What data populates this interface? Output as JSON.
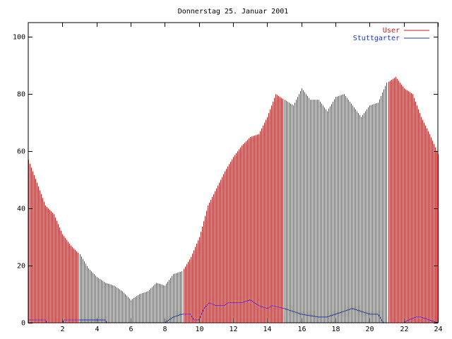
{
  "chart_data": {
    "type": "bar",
    "title": "Donnerstag 25. Januar 2001",
    "xlabel": "",
    "ylabel": "",
    "xlim": [
      0,
      24
    ],
    "ylim": [
      0,
      105
    ],
    "x_ticks": [
      2,
      4,
      6,
      8,
      10,
      12,
      14,
      16,
      18,
      20,
      22,
      24
    ],
    "x_tick_labels": [
      "2",
      "4",
      "6",
      "8",
      "10",
      "12",
      "14",
      "16",
      "18",
      "20",
      "22",
      "24"
    ],
    "y_ticks": [
      0,
      20,
      40,
      60,
      80,
      100
    ],
    "y_tick_labels": [
      "0",
      "20",
      "40",
      "60",
      "80",
      "100"
    ],
    "grid": false,
    "legend_position": "top-right",
    "series": [
      {
        "name": "User",
        "style": "impulses",
        "color": "#d11a1a",
        "points": [
          [
            0.0,
            57
          ],
          [
            0.5,
            49
          ],
          [
            1.0,
            41
          ],
          [
            1.5,
            38
          ],
          [
            2.0,
            31
          ],
          [
            2.5,
            27
          ],
          [
            3.0,
            24
          ],
          [
            3.5,
            19
          ],
          [
            4.0,
            16
          ],
          [
            4.5,
            14
          ],
          [
            5.0,
            13
          ],
          [
            5.5,
            11
          ],
          [
            6.0,
            8
          ],
          [
            6.5,
            10
          ],
          [
            7.0,
            11
          ],
          [
            7.5,
            14
          ],
          [
            8.0,
            13
          ],
          [
            8.5,
            17
          ],
          [
            9.0,
            18
          ],
          [
            9.5,
            23
          ],
          [
            10.0,
            30
          ],
          [
            10.5,
            41
          ],
          [
            11.0,
            47
          ],
          [
            11.5,
            53
          ],
          [
            12.0,
            58
          ],
          [
            12.5,
            62
          ],
          [
            13.0,
            65
          ],
          [
            13.5,
            66
          ],
          [
            14.0,
            72
          ],
          [
            14.5,
            80
          ],
          [
            15.0,
            78
          ],
          [
            15.5,
            76
          ],
          [
            16.0,
            82
          ],
          [
            16.5,
            78
          ],
          [
            17.0,
            78
          ],
          [
            17.5,
            74
          ],
          [
            18.0,
            79
          ],
          [
            18.5,
            80
          ],
          [
            19.0,
            76
          ],
          [
            19.5,
            72
          ],
          [
            20.0,
            76
          ],
          [
            20.5,
            77
          ],
          [
            21.0,
            84
          ],
          [
            21.5,
            86
          ],
          [
            22.0,
            82
          ],
          [
            22.5,
            80
          ],
          [
            23.0,
            72
          ],
          [
            23.5,
            66
          ],
          [
            24.0,
            59
          ]
        ]
      },
      {
        "name": "Stuttgarter",
        "style": "line",
        "color": "#1e36c8",
        "points": [
          [
            0.0,
            1
          ],
          [
            1.0,
            1
          ],
          [
            1.1,
            0
          ],
          [
            2.0,
            0
          ],
          [
            2.1,
            1
          ],
          [
            4.5,
            1
          ],
          [
            4.6,
            0
          ],
          [
            5.0,
            0
          ],
          [
            8.0,
            0
          ],
          [
            8.5,
            2
          ],
          [
            9.0,
            3
          ],
          [
            9.5,
            3
          ],
          [
            9.7,
            1
          ],
          [
            10.0,
            1
          ],
          [
            10.3,
            5
          ],
          [
            10.6,
            7
          ],
          [
            11.0,
            6
          ],
          [
            11.5,
            6
          ],
          [
            11.7,
            7
          ],
          [
            12.5,
            7
          ],
          [
            13.0,
            8
          ],
          [
            13.5,
            6
          ],
          [
            14.0,
            5
          ],
          [
            14.3,
            6
          ],
          [
            15.0,
            5
          ],
          [
            15.5,
            4
          ],
          [
            16.0,
            3
          ],
          [
            17.0,
            2
          ],
          [
            17.5,
            2
          ],
          [
            18.0,
            3
          ],
          [
            18.5,
            4
          ],
          [
            19.0,
            5
          ],
          [
            19.5,
            4
          ],
          [
            20.0,
            3
          ],
          [
            20.5,
            3
          ],
          [
            20.8,
            0
          ],
          [
            22.0,
            0
          ],
          [
            22.3,
            1
          ],
          [
            22.7,
            2
          ],
          [
            23.0,
            2
          ],
          [
            23.5,
            1
          ],
          [
            24.0,
            0
          ]
        ]
      }
    ]
  }
}
